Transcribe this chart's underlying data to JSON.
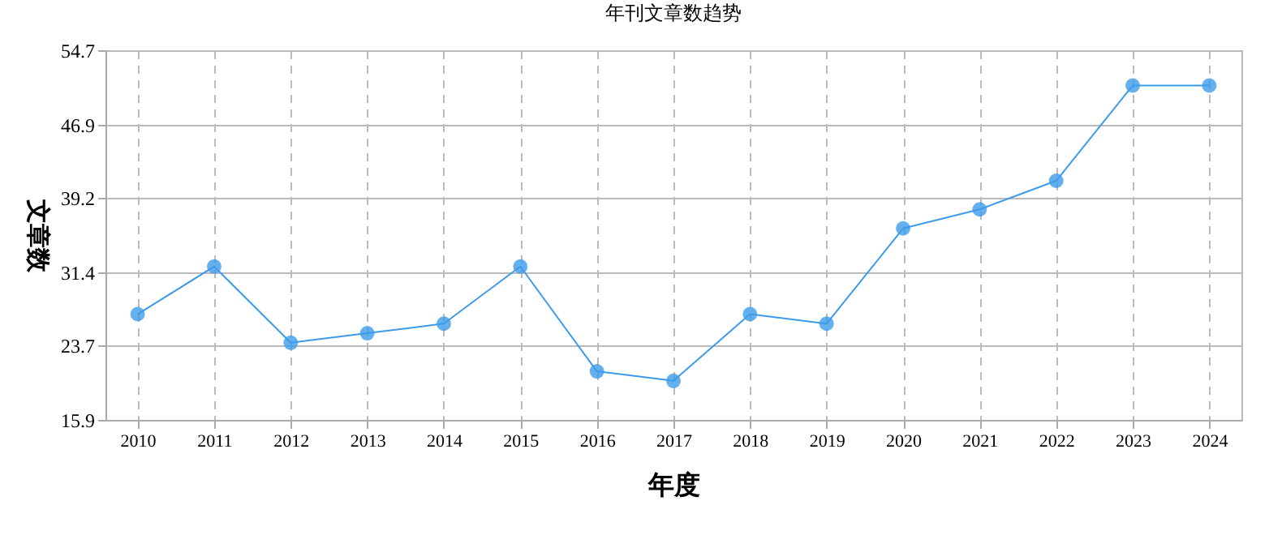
{
  "chart_data": {
    "type": "line",
    "title": "年刊文章数趋势",
    "xlabel": "年度",
    "ylabel": "文章数",
    "categories": [
      "2010",
      "2011",
      "2012",
      "2013",
      "2014",
      "2015",
      "2016",
      "2017",
      "2018",
      "2019",
      "2020",
      "2021",
      "2022",
      "2023",
      "2024"
    ],
    "series": [
      {
        "color": "#3d9be9",
        "values": [
          27,
          32,
          24,
          25,
          26,
          32,
          21,
          20,
          27,
          26,
          36,
          38,
          41,
          51,
          51
        ]
      }
    ],
    "ylim": [
      15.9,
      54.7
    ],
    "yticks": [
      15.9,
      23.7,
      31.4,
      39.2,
      46.9,
      54.7
    ],
    "grid": true,
    "marker": "circle",
    "line_style": "solid"
  }
}
